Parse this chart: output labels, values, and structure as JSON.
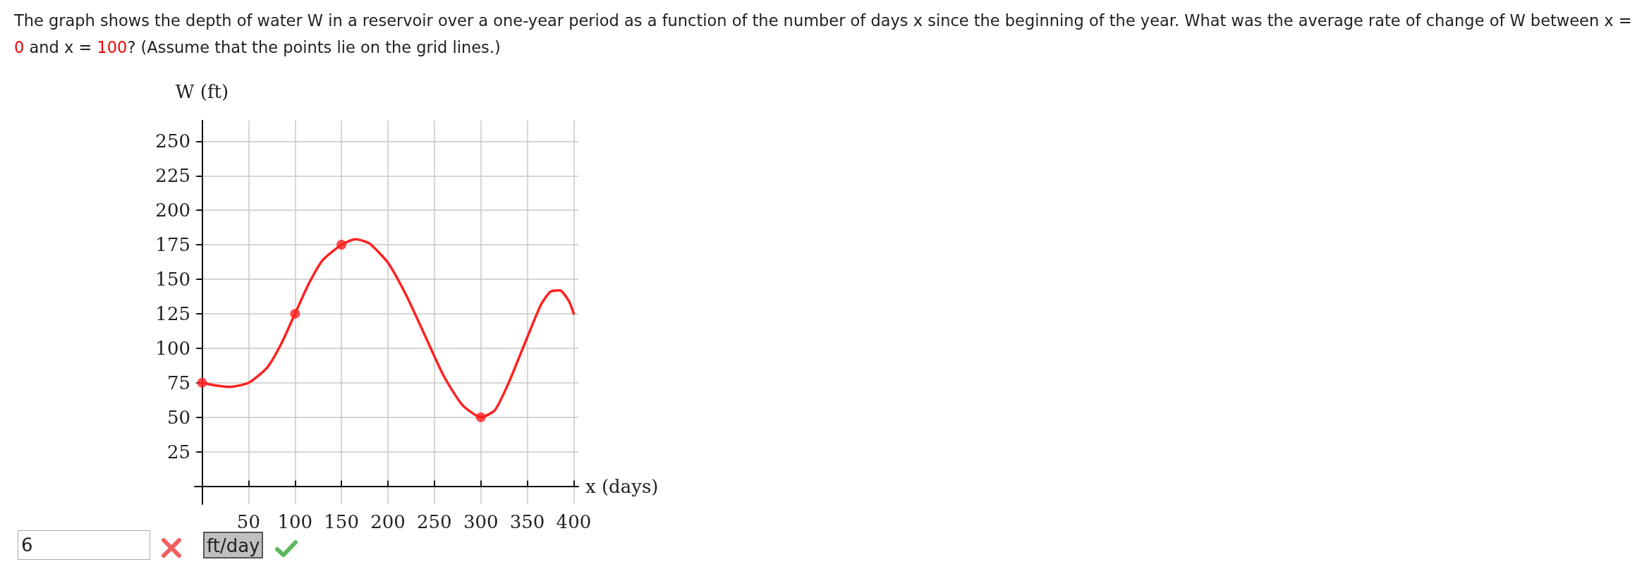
{
  "chart_data": {
    "type": "line",
    "title": "The graph shows the depth of water W in a reservoir over a one-year period as a function of the number of days x since the beginning of the year. What was the average rate of change of W between x = 0 and x = 100? (Assume that the points lie on the grid lines.)",
    "xlabel": "x (days)",
    "ylabel": "W (ft)",
    "series": [
      {
        "color": "#ff2020",
        "marker": "none",
        "x": [
          0,
          15,
          30,
          50,
          70,
          85,
          100,
          115,
          130,
          150,
          165,
          180,
          200,
          220,
          240,
          260,
          280,
          300,
          315,
          330,
          350,
          365,
          375,
          385,
          395,
          400
        ],
        "values": [
          75,
          73,
          72,
          75,
          86,
          103,
          125,
          147,
          164,
          175,
          179,
          176,
          162,
          138,
          109,
          80,
          59,
          50,
          55,
          75,
          108,
          132,
          141,
          142,
          134,
          125
        ]
      },
      {
        "type": "scatter",
        "color": "#ff2020",
        "marker": "circle",
        "x": [
          0,
          100,
          150,
          300
        ],
        "values": [
          75,
          125,
          175,
          50
        ]
      }
    ],
    "xlim": [
      -8,
      405
    ],
    "ylim": [
      -13,
      265
    ],
    "xticks": [
      50,
      100,
      150,
      200,
      250,
      300,
      350,
      400
    ],
    "yticks": [
      25,
      50,
      75,
      100,
      125,
      150,
      175,
      200,
      225,
      250
    ],
    "grid": true,
    "annotations": [
      "6",
      "ft/day"
    ]
  }
}
